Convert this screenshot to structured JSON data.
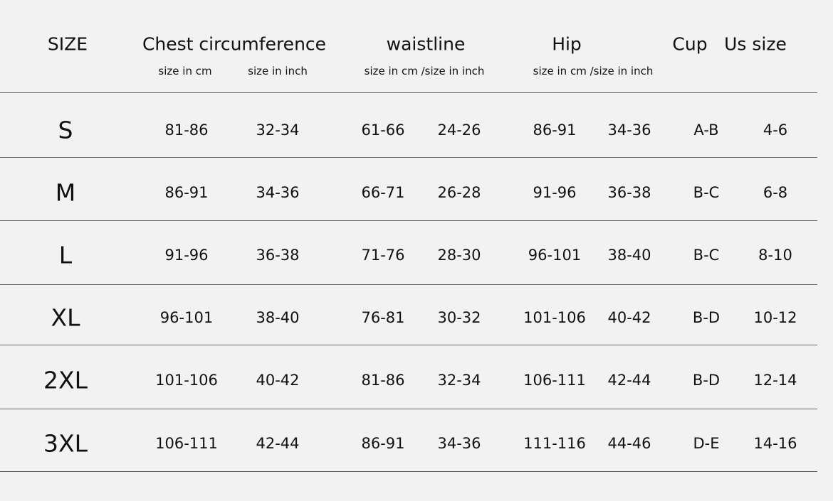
{
  "table": {
    "headers": [
      "SIZE",
      "Chest circumference",
      "waistline",
      "Hip",
      "Cup",
      "Us size"
    ],
    "subheaders": [
      "size in cm",
      "size in inch",
      "size in cm /size in inch",
      "size in cm /size in inch"
    ],
    "rows": [
      [
        "S",
        "81-86",
        "32-34",
        "61-66",
        "24-26",
        "86-91",
        "34-36",
        "A-B",
        "4-6"
      ],
      [
        "M",
        "86-91",
        "34-36",
        "66-71",
        "26-28",
        "91-96",
        "36-38",
        "B-C",
        "6-8"
      ],
      [
        "L",
        "91-96",
        "36-38",
        "71-76",
        "28-30",
        "96-101",
        "38-40",
        "B-C",
        "8-10"
      ],
      [
        "XL",
        "96-101",
        "38-40",
        "76-81",
        "30-32",
        "101-106",
        "40-42",
        "B-D",
        "10-12"
      ],
      [
        "2XL",
        "101-106",
        "40-42",
        "81-86",
        "32-34",
        "106-111",
        "42-44",
        "B-D",
        "12-14"
      ],
      [
        "3XL",
        "106-111",
        "42-44",
        "86-91",
        "34-36",
        "111-116",
        "44-46",
        "D-E",
        "14-16"
      ]
    ]
  }
}
